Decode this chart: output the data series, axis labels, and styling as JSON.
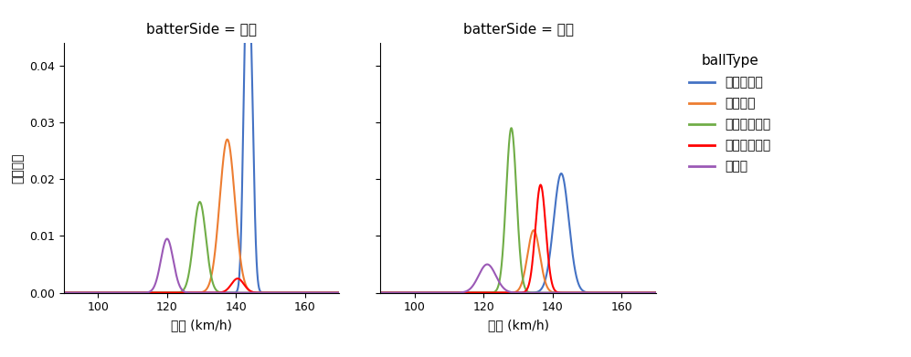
{
  "title_left": "batterSide = 左打",
  "title_right": "batterSide = 右打",
  "xlabel": "球速 (km/h)",
  "ylabel": "確率密度",
  "legend_title": "ballType",
  "legend_labels": [
    "ストレート",
    "フォーク",
    "縦スライダー",
    "カットボール",
    "カーブ"
  ],
  "colors": [
    "#4472C4",
    "#ED7D31",
    "#70AD47",
    "#FF0000",
    "#9B59B6"
  ],
  "xlim": [
    90,
    170
  ],
  "ylim": [
    0,
    0.044
  ],
  "xticks": [
    100,
    120,
    140,
    160
  ],
  "left_distributions": [
    {
      "mean": 144.2,
      "std": 0.9,
      "peak": 0.0415,
      "bimodal": true,
      "mean2": 142.8,
      "std2": 0.8,
      "peak2": 0.038
    },
    {
      "mean": 137.5,
      "std": 2.2,
      "peak": 0.027,
      "bimodal": false
    },
    {
      "mean": 129.5,
      "std": 1.8,
      "peak": 0.016,
      "bimodal": false
    },
    {
      "mean": 140.5,
      "std": 1.8,
      "peak": 0.0025,
      "bimodal": false
    },
    {
      "mean": 120.0,
      "std": 1.8,
      "peak": 0.0095,
      "bimodal": false
    }
  ],
  "right_distributions": [
    {
      "mean": 142.5,
      "std": 2.2,
      "peak": 0.021,
      "bimodal": false
    },
    {
      "mean": 134.5,
      "std": 1.8,
      "peak": 0.011,
      "bimodal": false
    },
    {
      "mean": 128.0,
      "std": 1.5,
      "peak": 0.029,
      "bimodal": false
    },
    {
      "mean": 136.5,
      "std": 1.5,
      "peak": 0.019,
      "bimodal": false
    },
    {
      "mean": 121.0,
      "std": 2.5,
      "peak": 0.005,
      "bimodal": false
    }
  ],
  "background_color": "#FFFFFF",
  "axes_bg_color": "#FFFFFF"
}
